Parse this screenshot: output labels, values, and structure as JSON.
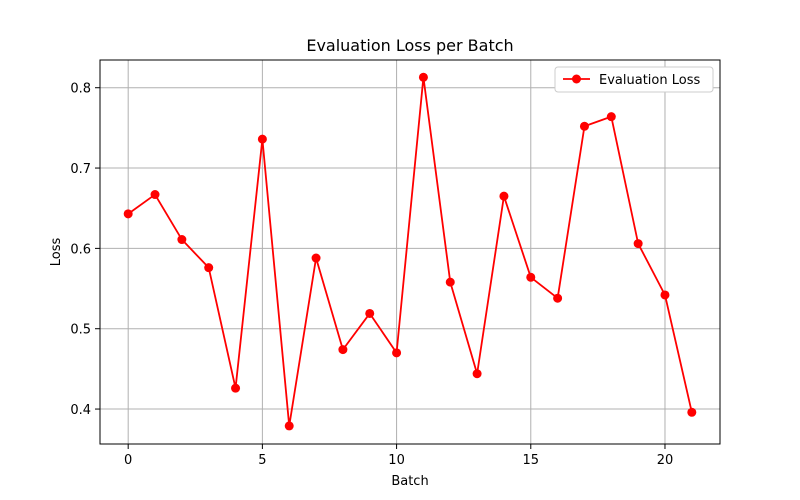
{
  "chart_data": {
    "type": "line",
    "title": "Evaluation Loss per Batch",
    "xlabel": "Batch",
    "ylabel": "Loss",
    "xlim": [
      -1.05,
      22.05
    ],
    "ylim": [
      0.3565,
      0.8345
    ],
    "x_ticks": [
      0,
      5,
      10,
      15,
      20
    ],
    "x_tick_labels": [
      "0",
      "5",
      "10",
      "15",
      "20"
    ],
    "y_ticks": [
      0.4,
      0.5,
      0.6,
      0.7,
      0.8
    ],
    "y_tick_labels": [
      "0.4",
      "0.5",
      "0.6",
      "0.7",
      "0.8"
    ],
    "grid": true,
    "legend_position": "top-right",
    "series": [
      {
        "name": "Evaluation Loss",
        "color": "#ff0000",
        "marker": "circle",
        "x": [
          0,
          1,
          2,
          3,
          4,
          5,
          6,
          7,
          8,
          9,
          10,
          11,
          12,
          13,
          14,
          15,
          16,
          17,
          18,
          19,
          20,
          21
        ],
        "values": [
          0.643,
          0.667,
          0.611,
          0.576,
          0.426,
          0.736,
          0.379,
          0.588,
          0.474,
          0.519,
          0.47,
          0.813,
          0.558,
          0.444,
          0.665,
          0.564,
          0.538,
          0.752,
          0.764,
          0.606,
          0.542,
          0.396
        ]
      }
    ]
  }
}
